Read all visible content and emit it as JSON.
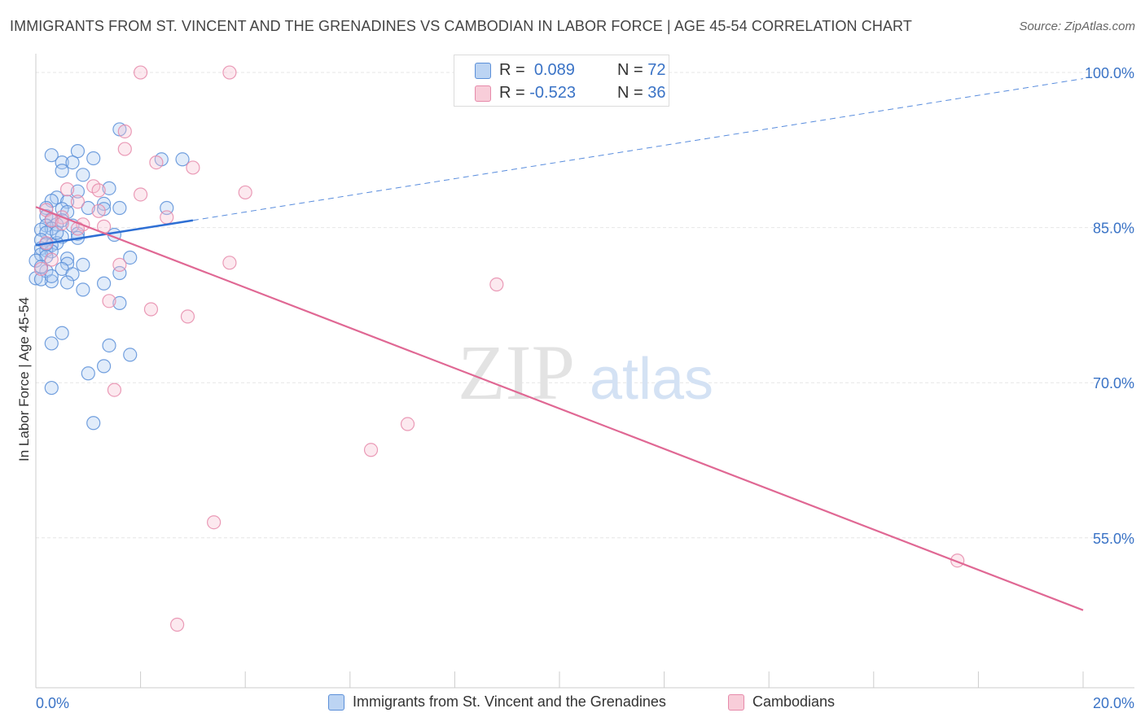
{
  "title": "IMMIGRANTS FROM ST. VINCENT AND THE GRENADINES VS CAMBODIAN IN LABOR FORCE | AGE 45-54 CORRELATION CHART",
  "source": "Source: ZipAtlas.com",
  "watermark": {
    "zip": "ZIP",
    "atlas": "atlas"
  },
  "legend": {
    "series1": {
      "r_label": "R =",
      "r_value": "0.089",
      "n_label": "N =",
      "n_value": "72"
    },
    "series2": {
      "r_label": "R =",
      "r_value": "-0.523",
      "n_label": "N =",
      "n_value": "36"
    }
  },
  "colors": {
    "blue_fill": "#a9c8f0",
    "blue_stroke": "#5b8fd8",
    "blue_line": "#2e6fd4",
    "pink_fill": "#f6bfd0",
    "pink_stroke": "#e68aaa",
    "pink_line": "#e06894",
    "tick_text": "#3a73c6"
  },
  "chart_data": {
    "type": "scatter",
    "title": "IMMIGRANTS FROM ST. VINCENT AND THE GRENADINES VS CAMBODIAN IN LABOR FORCE | AGE 45-54 CORRELATION CHART",
    "xlabel": "",
    "ylabel": "In Labor Force | Age 45-54",
    "xlim": [
      0,
      20
    ],
    "ylim": [
      40.5,
      101.5
    ],
    "x_tick_labels": [
      "0.0%",
      "20.0%"
    ],
    "y_ticks": [
      55,
      70,
      85,
      100
    ],
    "y_tick_labels": [
      "55.0%",
      "70.0%",
      "85.0%",
      "100.0%"
    ],
    "grid": true,
    "series": [
      {
        "name": "Immigrants from St. Vincent and the Grenadines",
        "color": "blue",
        "trend": {
          "x_start": 0,
          "y_start": 83.3,
          "x_end": 3.0,
          "y_end": 85.7,
          "dashed_to_x": 20,
          "dashed_to_y": 99.4
        },
        "points": [
          [
            1.6,
            94.5
          ],
          [
            0.3,
            92.0
          ],
          [
            0.8,
            92.4
          ],
          [
            1.1,
            91.7
          ],
          [
            0.5,
            91.3
          ],
          [
            0.7,
            91.3
          ],
          [
            2.4,
            91.6
          ],
          [
            2.8,
            91.6
          ],
          [
            0.5,
            90.5
          ],
          [
            0.9,
            90.1
          ],
          [
            1.4,
            88.8
          ],
          [
            0.8,
            88.5
          ],
          [
            0.4,
            87.9
          ],
          [
            0.6,
            87.5
          ],
          [
            0.3,
            87.6
          ],
          [
            1.3,
            87.3
          ],
          [
            1.6,
            86.9
          ],
          [
            2.5,
            86.9
          ],
          [
            0.2,
            86.9
          ],
          [
            0.5,
            86.8
          ],
          [
            1.0,
            86.9
          ],
          [
            1.3,
            86.8
          ],
          [
            0.6,
            86.5
          ],
          [
            0.2,
            86.1
          ],
          [
            0.3,
            85.8
          ],
          [
            0.5,
            85.7
          ],
          [
            0.4,
            85.3
          ],
          [
            0.2,
            85.2
          ],
          [
            0.7,
            85.2
          ],
          [
            0.3,
            84.9
          ],
          [
            0.1,
            84.8
          ],
          [
            0.2,
            84.5
          ],
          [
            0.8,
            84.4
          ],
          [
            1.5,
            84.3
          ],
          [
            0.5,
            84.1
          ],
          [
            0.8,
            84.0
          ],
          [
            0.1,
            83.8
          ],
          [
            0.4,
            83.5
          ],
          [
            0.3,
            83.3
          ],
          [
            0.1,
            83.0
          ],
          [
            0.2,
            82.8
          ],
          [
            0.3,
            82.7
          ],
          [
            0.1,
            82.4
          ],
          [
            0.2,
            82.2
          ],
          [
            0.6,
            82.0
          ],
          [
            1.8,
            82.1
          ],
          [
            0.0,
            81.8
          ],
          [
            0.6,
            81.5
          ],
          [
            0.9,
            81.4
          ],
          [
            0.5,
            81.0
          ],
          [
            0.2,
            80.8
          ],
          [
            0.7,
            80.5
          ],
          [
            1.6,
            80.6
          ],
          [
            0.0,
            80.1
          ],
          [
            0.3,
            79.8
          ],
          [
            0.6,
            79.7
          ],
          [
            0.1,
            80.0
          ],
          [
            1.3,
            79.6
          ],
          [
            0.9,
            79.0
          ],
          [
            1.6,
            77.7
          ],
          [
            0.5,
            74.8
          ],
          [
            0.3,
            73.8
          ],
          [
            1.4,
            73.6
          ],
          [
            1.8,
            72.7
          ],
          [
            1.3,
            71.6
          ],
          [
            1.0,
            70.9
          ],
          [
            0.3,
            69.5
          ],
          [
            1.1,
            66.1
          ],
          [
            0.2,
            83.4
          ],
          [
            0.4,
            84.5
          ],
          [
            0.1,
            81.2
          ],
          [
            0.3,
            80.3
          ]
        ]
      },
      {
        "name": "Cambodians",
        "color": "pink",
        "trend": {
          "x_start": 0,
          "y_start": 87.0,
          "x_end": 20,
          "y_end": 48.0
        },
        "points": [
          [
            2.0,
            100.0
          ],
          [
            3.7,
            100.0
          ],
          [
            1.7,
            94.3
          ],
          [
            1.7,
            92.6
          ],
          [
            2.3,
            91.3
          ],
          [
            3.0,
            90.8
          ],
          [
            1.1,
            89.0
          ],
          [
            0.6,
            88.7
          ],
          [
            1.2,
            88.6
          ],
          [
            2.0,
            88.2
          ],
          [
            4.0,
            88.4
          ],
          [
            0.8,
            87.5
          ],
          [
            1.2,
            86.6
          ],
          [
            0.2,
            86.7
          ],
          [
            0.5,
            86.0
          ],
          [
            0.3,
            85.7
          ],
          [
            0.5,
            85.4
          ],
          [
            0.9,
            85.3
          ],
          [
            1.3,
            85.1
          ],
          [
            0.8,
            84.9
          ],
          [
            2.5,
            86.0
          ],
          [
            0.2,
            83.5
          ],
          [
            0.3,
            81.9
          ],
          [
            1.6,
            81.4
          ],
          [
            3.7,
            81.6
          ],
          [
            0.1,
            81.0
          ],
          [
            1.4,
            77.9
          ],
          [
            2.2,
            77.1
          ],
          [
            2.9,
            76.4
          ],
          [
            8.8,
            79.5
          ],
          [
            1.5,
            69.3
          ],
          [
            7.1,
            66.0
          ],
          [
            6.4,
            63.5
          ],
          [
            3.4,
            56.5
          ],
          [
            17.6,
            52.8
          ],
          [
            2.7,
            46.6
          ]
        ]
      }
    ]
  },
  "bottom_legend": {
    "items": [
      {
        "label": "Immigrants from St. Vincent and the Grenadines"
      },
      {
        "label": "Cambodians"
      }
    ]
  }
}
